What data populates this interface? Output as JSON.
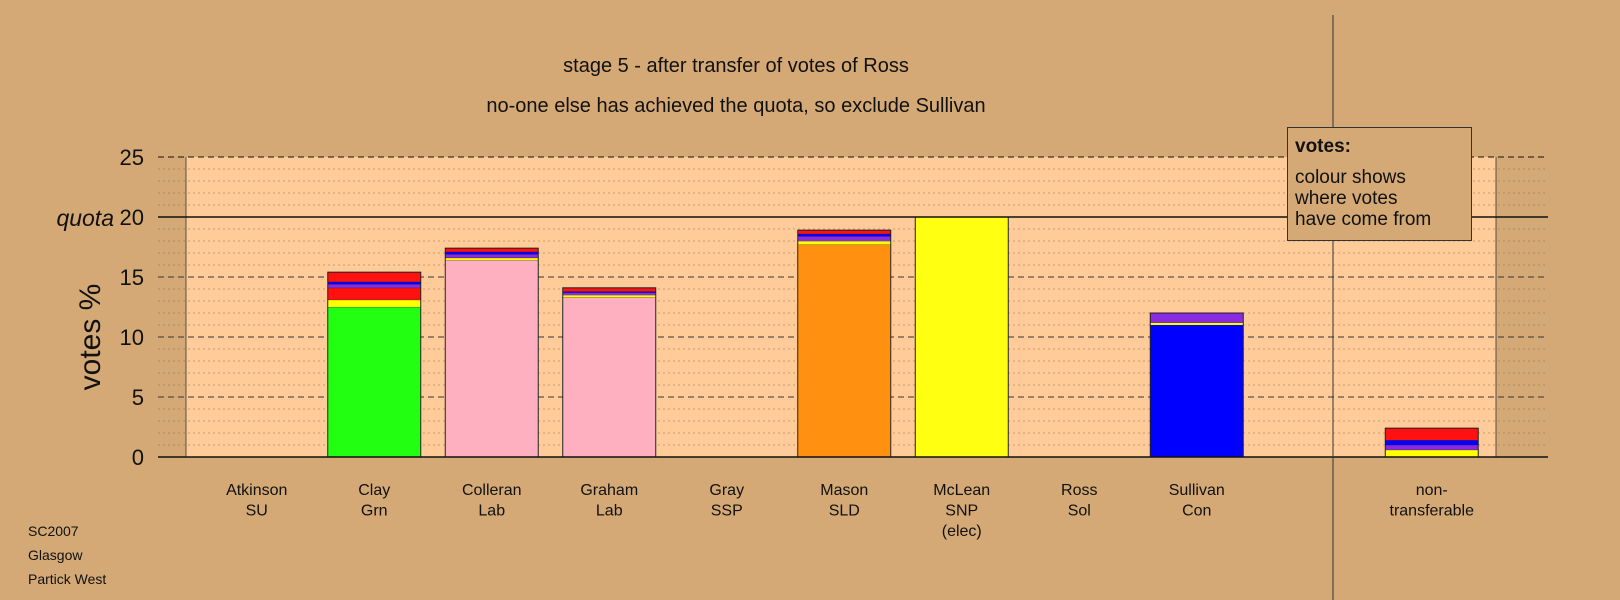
{
  "chart_data": {
    "type": "bar",
    "stacked": true,
    "title": "stage 5 - after transfer of votes of Ross",
    "subtitle": "no-one else has achieved the quota, so exclude Sullivan",
    "ylabel": "votes %",
    "ylim": [
      0,
      25
    ],
    "yticks": [
      0,
      5,
      10,
      15,
      20,
      25
    ],
    "quota": 20,
    "quota_label": "quota",
    "grid": true,
    "categories": [
      {
        "name": "Atkinson",
        "party": "SU",
        "extra": ""
      },
      {
        "name": "Clay",
        "party": "Grn",
        "extra": ""
      },
      {
        "name": "Colleran",
        "party": "Lab",
        "extra": ""
      },
      {
        "name": "Graham",
        "party": "Lab",
        "extra": ""
      },
      {
        "name": "Gray",
        "party": "SSP",
        "extra": ""
      },
      {
        "name": "Mason",
        "party": "SLD",
        "extra": ""
      },
      {
        "name": "McLean",
        "party": "SNP",
        "extra": "(elec)"
      },
      {
        "name": "Ross",
        "party": "Sol",
        "extra": ""
      },
      {
        "name": "Sullivan",
        "party": "Con",
        "extra": ""
      },
      {
        "name": "",
        "party": "",
        "extra": ""
      },
      {
        "name": "non-",
        "party": "transferable",
        "extra": ""
      }
    ],
    "stacks": [
      [],
      [
        {
          "value": 12.5,
          "color": "#22ff11"
        },
        {
          "value": 0.6,
          "color": "#ffff00"
        },
        {
          "value": 1.0,
          "color": "#ff1111"
        },
        {
          "value": 0.3,
          "color": "#8a2be2"
        },
        {
          "value": 0.2,
          "color": "#0000ff"
        },
        {
          "value": 0.8,
          "color": "#ff1111"
        }
      ],
      [
        {
          "value": 16.4,
          "color": "#ffb0c0"
        },
        {
          "value": 0.2,
          "color": "#ffff00"
        },
        {
          "value": 0.3,
          "color": "#8a2be2"
        },
        {
          "value": 0.2,
          "color": "#0000ff"
        },
        {
          "value": 0.3,
          "color": "#ff1111"
        }
      ],
      [
        {
          "value": 13.3,
          "color": "#ffb0c0"
        },
        {
          "value": 0.2,
          "color": "#ffff00"
        },
        {
          "value": 0.2,
          "color": "#8a2be2"
        },
        {
          "value": 0.1,
          "color": "#0000ff"
        },
        {
          "value": 0.3,
          "color": "#ff1111"
        }
      ],
      [],
      [
        {
          "value": 17.7,
          "color": "#ff9010"
        },
        {
          "value": 0.3,
          "color": "#ffff00"
        },
        {
          "value": 0.4,
          "color": "#8a2be2"
        },
        {
          "value": 0.2,
          "color": "#0000ff"
        },
        {
          "value": 0.3,
          "color": "#ff1111"
        }
      ],
      [
        {
          "value": 20.0,
          "color": "#ffff11"
        }
      ],
      [],
      [
        {
          "value": 11.0,
          "color": "#0000ff"
        },
        {
          "value": 0.2,
          "color": "#ffff00"
        },
        {
          "value": 0.8,
          "color": "#8a2be2"
        }
      ],
      [],
      [
        {
          "value": 0.6,
          "color": "#ffff00"
        },
        {
          "value": 0.4,
          "color": "#8a2be2"
        },
        {
          "value": 0.4,
          "color": "#0000ff"
        },
        {
          "value": 1.0,
          "color": "#ff1111"
        }
      ]
    ],
    "legend": {
      "title": "votes:",
      "lines": [
        "colour shows",
        "where votes",
        "have come from"
      ],
      "placement": "top-right"
    }
  },
  "footnote": [
    "SC2007",
    "Glasgow",
    "Partick West"
  ],
  "colors": {
    "background": "#d4a975",
    "plot_area": "#ffcc99"
  }
}
